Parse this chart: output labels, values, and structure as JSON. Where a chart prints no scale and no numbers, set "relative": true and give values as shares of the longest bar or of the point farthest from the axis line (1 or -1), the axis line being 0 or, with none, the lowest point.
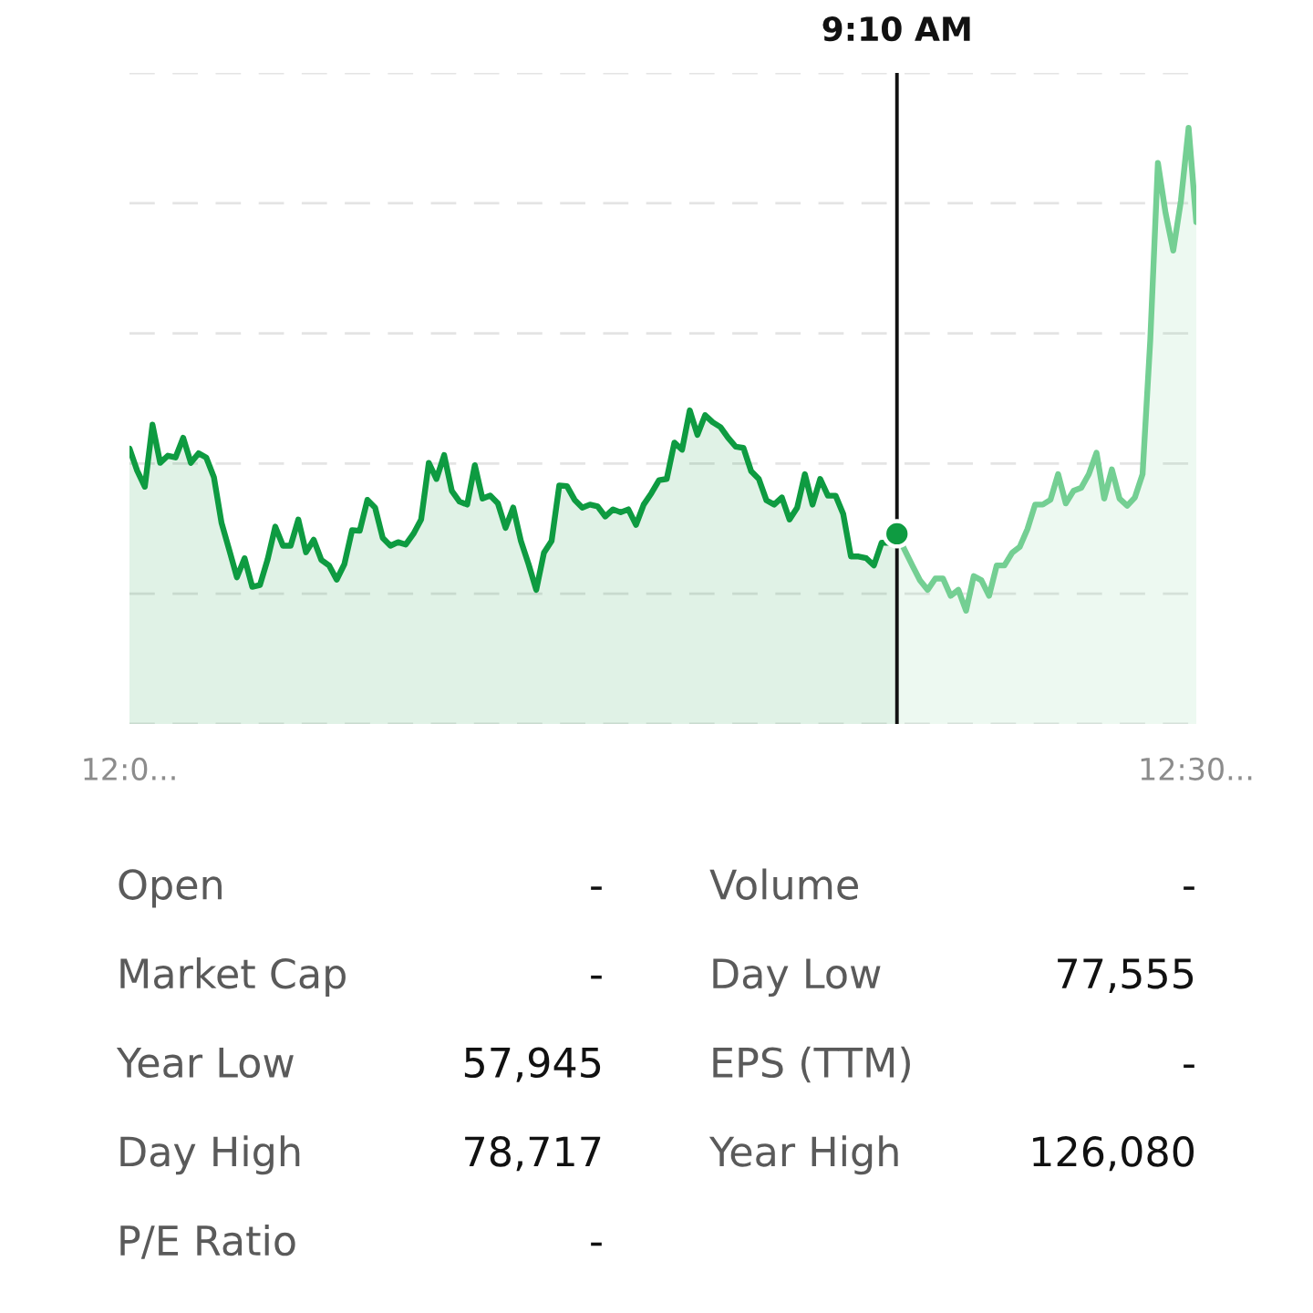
{
  "chart_data": {
    "type": "area",
    "relative": true,
    "grid": "y",
    "tick_labels": "x",
    "categories": [
      "12:0...",
      null,
      null,
      null,
      null,
      null,
      null,
      null,
      null,
      null,
      null,
      null,
      null,
      null,
      null,
      null,
      null,
      null,
      null,
      null,
      null,
      null,
      null,
      null,
      null,
      null,
      null,
      null,
      null,
      null,
      null,
      null,
      null,
      null,
      null,
      null,
      null,
      null,
      null,
      null,
      null,
      null,
      null,
      null,
      null,
      null,
      null,
      null,
      null,
      null,
      null,
      null,
      null,
      null,
      null,
      null,
      null,
      null,
      null,
      null,
      null,
      null,
      null,
      null,
      null,
      null,
      null,
      null,
      null,
      null,
      null,
      null,
      null,
      null,
      null,
      null,
      null,
      null,
      null,
      null,
      null,
      null,
      null,
      null,
      null,
      null,
      null,
      null,
      null,
      null,
      null,
      null,
      null,
      null,
      null,
      null,
      null,
      null,
      null,
      null,
      null,
      null,
      null,
      null,
      null,
      null,
      null,
      null,
      null,
      null,
      null,
      null,
      null,
      null,
      null,
      null,
      null,
      null,
      null,
      null,
      null,
      null,
      null,
      null,
      null,
      null,
      null,
      null,
      null,
      null,
      null,
      null,
      null,
      null,
      null,
      null,
      null,
      null,
      null,
      "12:30..."
    ],
    "series": [
      {
        "color": "#0e9b41",
        "values": [
          0.462,
          0.425,
          0.398,
          0.502,
          0.438,
          0.45,
          0.447,
          0.48,
          0.438,
          0.454,
          0.447,
          0.414,
          0.337,
          0.292,
          0.246,
          0.278,
          0.23,
          0.233,
          0.276,
          0.331,
          0.299,
          0.299,
          0.343,
          0.288,
          0.309,
          0.275,
          0.266,
          0.242,
          0.268,
          0.325,
          0.324,
          0.376,
          0.363,
          0.312,
          0.299,
          0.305,
          0.301,
          0.319,
          0.343,
          0.438,
          0.411,
          0.451,
          0.391,
          0.373,
          0.368,
          0.434,
          0.378,
          0.383,
          0.37,
          0.329,
          0.363,
          0.307,
          0.268,
          0.225,
          0.287,
          0.307,
          0.4,
          0.399,
          0.376,
          0.363,
          0.368,
          0.365,
          0.348,
          0.36,
          0.355,
          0.36,
          0.334,
          0.368,
          0.387,
          0.409,
          0.411,
          0.472,
          0.46,
          0.526,
          0.485,
          0.518,
          0.506,
          0.498,
          0.48,
          0.465,
          0.463,
          0.424,
          0.411,
          0.375,
          0.368,
          0.38,
          0.343,
          0.363,
          0.419,
          0.368,
          0.411,
          0.383,
          0.383,
          0.352,
          0.281,
          0.281,
          0.278,
          0.266,
          0.304,
          0.304,
          0.319,
          null,
          null,
          null,
          null,
          null,
          null,
          null,
          null,
          null,
          null,
          null,
          null,
          null,
          null,
          null,
          null,
          null,
          null,
          null,
          null,
          null,
          null,
          null,
          null,
          null,
          null,
          null,
          null,
          null,
          null,
          null,
          null,
          null,
          null,
          null,
          null,
          null,
          null,
          null
        ]
      },
      {
        "color": "#74cf93",
        "values": [
          null,
          null,
          null,
          null,
          null,
          null,
          null,
          null,
          null,
          null,
          null,
          null,
          null,
          null,
          null,
          null,
          null,
          null,
          null,
          null,
          null,
          null,
          null,
          null,
          null,
          null,
          null,
          null,
          null,
          null,
          null,
          null,
          null,
          null,
          null,
          null,
          null,
          null,
          null,
          null,
          null,
          null,
          null,
          null,
          null,
          null,
          null,
          null,
          null,
          null,
          null,
          null,
          null,
          null,
          null,
          null,
          null,
          null,
          null,
          null,
          null,
          null,
          null,
          null,
          null,
          null,
          null,
          null,
          null,
          null,
          null,
          null,
          null,
          null,
          null,
          null,
          null,
          null,
          null,
          null,
          null,
          null,
          null,
          null,
          null,
          null,
          null,
          null,
          null,
          null,
          null,
          null,
          null,
          null,
          null,
          null,
          null,
          null,
          null,
          null,
          0.319,
          0.292,
          0.266,
          0.241,
          0.225,
          0.244,
          0.244,
          0.215,
          0.225,
          0.19,
          0.248,
          0.241,
          0.215,
          0.266,
          0.266,
          0.287,
          0.297,
          0.327,
          0.368,
          0.368,
          0.376,
          0.419,
          0.37,
          0.391,
          0.396,
          0.419,
          0.455,
          0.378,
          0.427,
          0.378,
          0.366,
          0.38,
          0.419,
          0.643,
          0.941,
          0.857,
          0.794,
          0.878,
          1.0,
          0.842
        ]
      },
      {
        "type": "scatter",
        "color": "#0e9b41",
        "values": [
          null,
          null,
          null,
          null,
          null,
          null,
          null,
          null,
          null,
          null,
          null,
          null,
          null,
          null,
          null,
          null,
          null,
          null,
          null,
          null,
          null,
          null,
          null,
          null,
          null,
          null,
          null,
          null,
          null,
          null,
          null,
          null,
          null,
          null,
          null,
          null,
          null,
          null,
          null,
          null,
          null,
          null,
          null,
          null,
          null,
          null,
          null,
          null,
          null,
          null,
          null,
          null,
          null,
          null,
          null,
          null,
          null,
          null,
          null,
          null,
          null,
          null,
          null,
          null,
          null,
          null,
          null,
          null,
          null,
          null,
          null,
          null,
          null,
          null,
          null,
          null,
          null,
          null,
          null,
          null,
          null,
          null,
          null,
          null,
          null,
          null,
          null,
          null,
          null,
          null,
          null,
          null,
          null,
          null,
          null,
          null,
          null,
          null,
          null,
          null,
          0.319,
          null,
          null,
          null,
          null,
          null,
          null,
          null,
          null,
          null,
          null,
          null,
          null,
          null,
          null,
          null,
          null,
          null,
          null,
          null,
          null,
          null,
          null,
          null,
          null,
          null,
          null,
          null,
          null,
          null,
          null,
          null,
          null,
          null,
          null,
          null,
          null,
          null,
          null,
          null
        ]
      }
    ],
    "annotations": [
      {
        "text": "9:10 AM"
      },
      "Open",
      "-",
      "Volume",
      "-",
      "Market Cap",
      "-",
      "Day Low",
      "77,555",
      "Year Low",
      "57,945",
      "EPS (TTM)",
      "-",
      "Day High",
      "78,717",
      "Year High",
      "126,080",
      "P/E Ratio",
      "-"
    ]
  }
}
